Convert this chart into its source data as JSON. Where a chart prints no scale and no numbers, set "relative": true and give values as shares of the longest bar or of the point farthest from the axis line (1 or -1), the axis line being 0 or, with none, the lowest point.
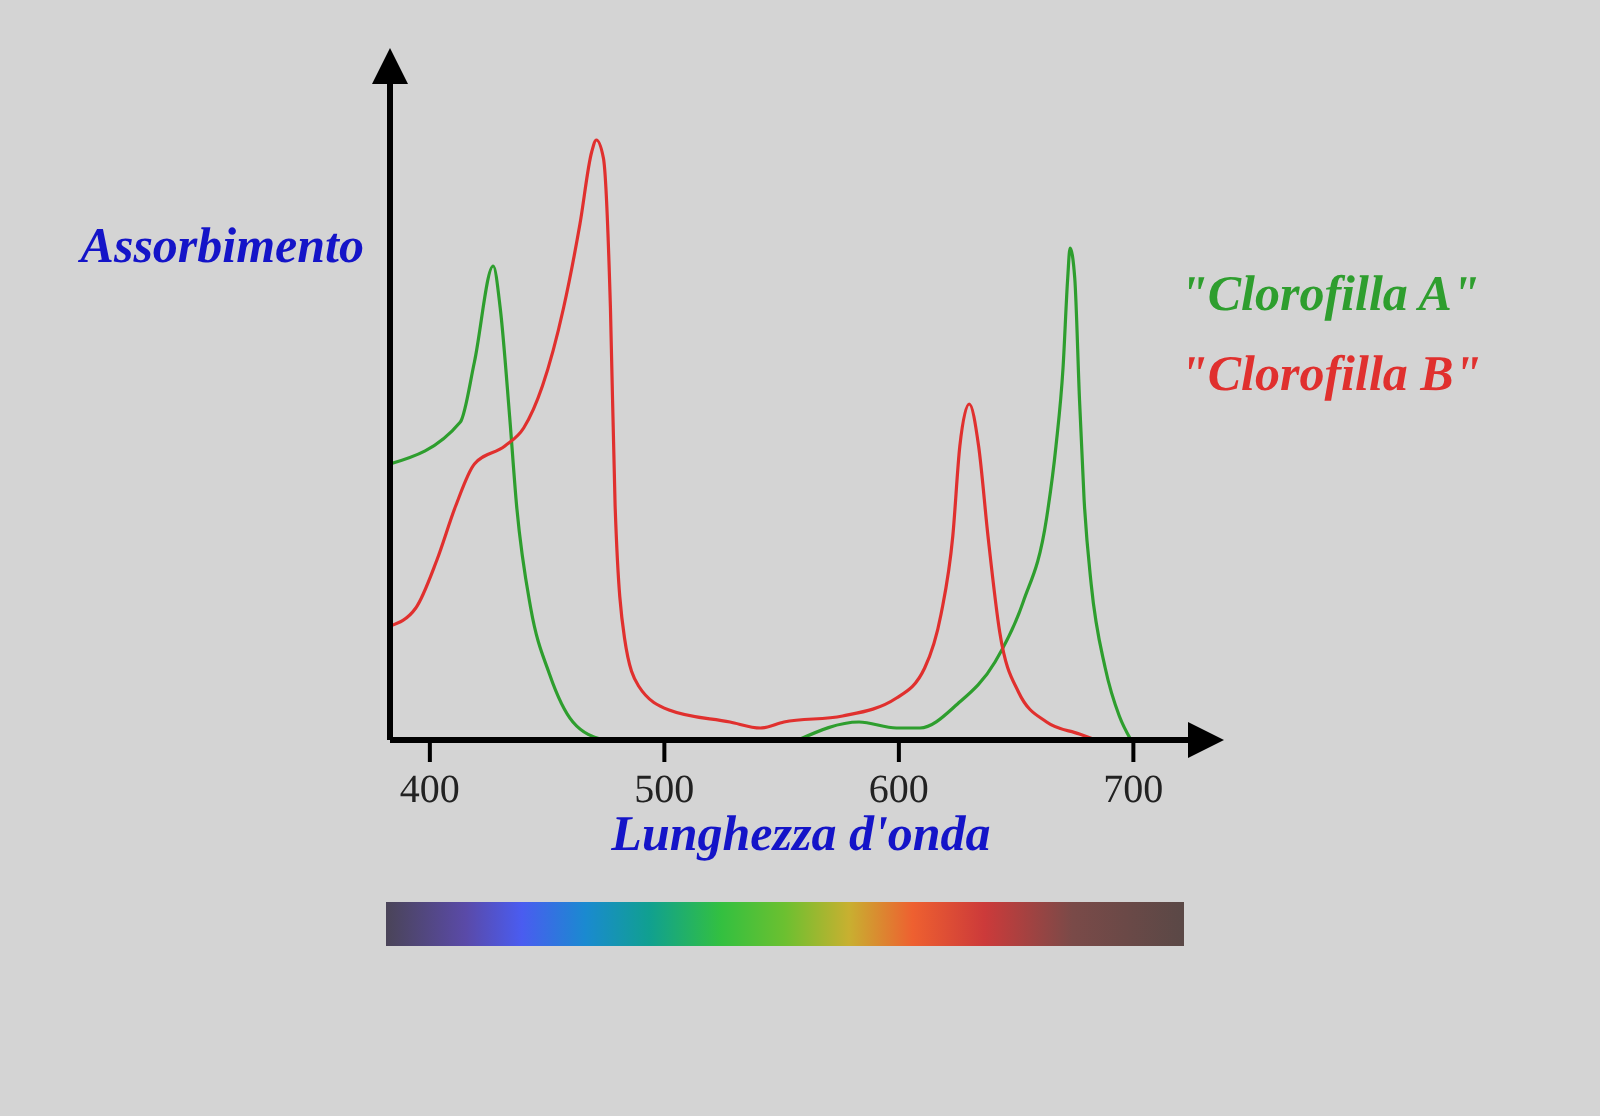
{
  "chart_data": {
    "type": "line",
    "relative": true,
    "xlabel": "Lunghezza d'onda",
    "ylabel": "Assorbimento",
    "xlim": [
      383,
      725
    ],
    "xticks": [
      400,
      500,
      600,
      700
    ],
    "legend": "right",
    "marker": "none",
    "series": [
      {
        "name": "\"Clorofilla A\"",
        "color": "#2e9e2e",
        "x": [
          383,
          413,
          419,
          427,
          430,
          434,
          437,
          443,
          451,
          461,
          474,
          515,
          557,
          583,
          599,
          609,
          625,
          641,
          653,
          663,
          667,
          670,
          672,
          673,
          675,
          677,
          679,
          682,
          688,
          694,
          699
        ],
        "values": [
          0.46,
          0.53,
          0.63,
          0.79,
          0.72,
          0.54,
          0.39,
          0.22,
          0.11,
          0.03,
          0,
          null,
          0,
          0.03,
          0.02,
          0.02,
          0.06,
          0.13,
          0.23,
          0.37,
          0.49,
          0.62,
          0.77,
          0.82,
          0.77,
          0.57,
          0.4,
          0.26,
          0.12,
          0.04,
          0
        ]
      },
      {
        "name": "\"Clorofilla B\"",
        "color": "#e0302e",
        "x": [
          383,
          394,
          403,
          411,
          419,
          432,
          440,
          448,
          457,
          464,
          469,
          471,
          474,
          477,
          479,
          483,
          489,
          502,
          528,
          541,
          551,
          576,
          599,
          611,
          618,
          623,
          626,
          630,
          634,
          638,
          643,
          651,
          663,
          677,
          684
        ],
        "values": [
          0.19,
          0.22,
          0.3,
          0.39,
          0.46,
          0.49,
          0.52,
          0.59,
          0.72,
          0.86,
          0.98,
          1,
          0.97,
          0.72,
          0.39,
          0.17,
          0.09,
          0.05,
          0.03,
          0.02,
          0.03,
          0.04,
          0.07,
          0.12,
          0.21,
          0.34,
          0.49,
          0.56,
          0.49,
          0.34,
          0.18,
          0.08,
          0.03,
          0.01,
          0
        ]
      }
    ]
  }
}
